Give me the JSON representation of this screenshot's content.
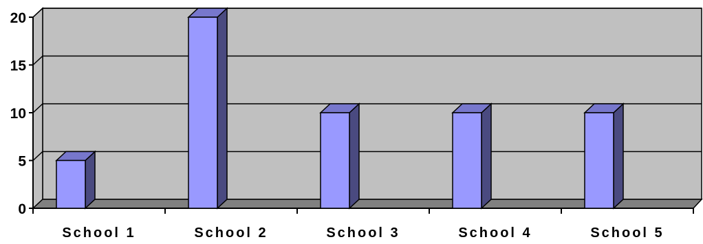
{
  "chart_data": {
    "type": "bar",
    "style": "3d-column",
    "categories": [
      "School 1",
      "School 2",
      "School 3",
      "School 4",
      "School 5"
    ],
    "values": [
      5,
      20,
      10,
      10,
      10
    ],
    "ylim": [
      0,
      20
    ],
    "yticks": [
      "0",
      "5",
      "10",
      "15",
      "20"
    ],
    "title": "",
    "xlabel": "",
    "ylabel": "",
    "grid": true,
    "legend": "none",
    "colors": {
      "bar_front": "#9999ff",
      "bar_side": "#4a4a80",
      "bar_top": "#7777cc",
      "wall": "#c0c0c0",
      "floor": "#808080",
      "gridline": "#000000"
    }
  }
}
